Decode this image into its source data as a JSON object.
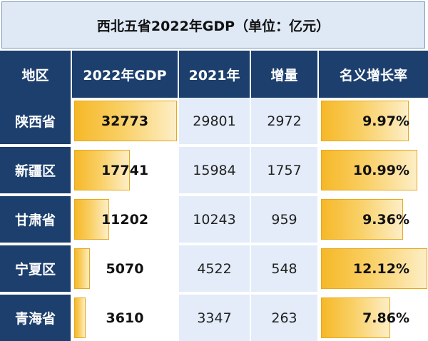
{
  "title": "西北五省2022年GDP（单位：亿元）",
  "columns": [
    "地区",
    "2022年GDP",
    "2021年",
    "增量",
    "名义增长率"
  ],
  "rows": [
    {
      "region": "陕西省",
      "gdp2022": "32773",
      "gdp2021": "29801",
      "increase": "2972",
      "rate": "9.97%",
      "gdp_value": 32773,
      "rate_value": 9.97
    },
    {
      "region": "新疆区",
      "gdp2022": "17741",
      "gdp2021": "15984",
      "increase": "1757",
      "rate": "10.99%",
      "gdp_value": 17741,
      "rate_value": 10.99
    },
    {
      "region": "甘肃省",
      "gdp2022": "11202",
      "gdp2021": "10243",
      "increase": "959",
      "rate": "9.36%",
      "gdp_value": 11202,
      "rate_value": 9.36
    },
    {
      "region": "宁夏区",
      "gdp2022": "5070",
      "gdp2021": "4522",
      "increase": "548",
      "rate": "12.12%",
      "gdp_value": 5070,
      "rate_value": 12.12
    },
    {
      "region": "青海省",
      "gdp2022": "3610",
      "gdp2021": "3347",
      "increase": "263",
      "rate": "7.86%",
      "gdp_value": 3610,
      "rate_value": 7.86
    }
  ],
  "colors": {
    "header": "#1c3f6e",
    "title_bg": "#dfe9f6",
    "cell_bg": "#e3ecf8",
    "bar": "#f6b828"
  }
}
